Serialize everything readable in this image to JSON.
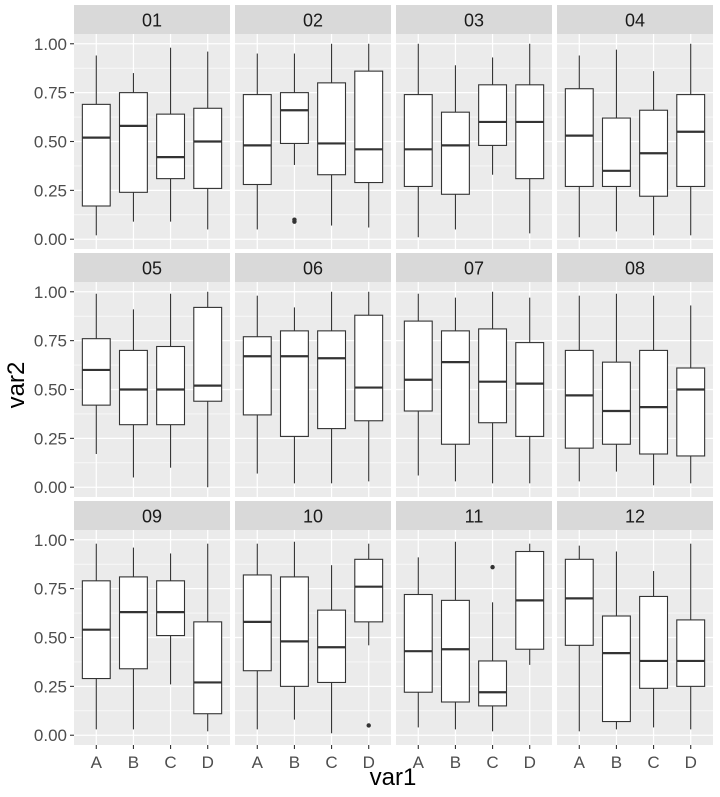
{
  "chart_data": {
    "type": "boxplot",
    "facet_layout": {
      "rows": 3,
      "cols": 4
    },
    "xlabel": "var1",
    "ylabel": "var2",
    "ylim": [
      0,
      1
    ],
    "y_ticks": [
      0,
      0.25,
      0.5,
      0.75,
      1
    ],
    "y_tick_labels": [
      "0.00",
      "0.25",
      "0.50",
      "0.75",
      "1.00"
    ],
    "categories": [
      "A",
      "B",
      "C",
      "D"
    ],
    "colors": {
      "panel_bg": "#ebebeb",
      "strip_bg": "#d9d9d9",
      "grid": "#ffffff",
      "box_fill": "#ffffff",
      "line": "#333333",
      "tick_text": "#4d4d4d",
      "strip_text": "#1a1a1a"
    },
    "panels": [
      {
        "label": "01",
        "boxes": [
          {
            "cat": "A",
            "min": 0.02,
            "q1": 0.17,
            "median": 0.52,
            "q3": 0.69,
            "max": 0.94,
            "outliers": []
          },
          {
            "cat": "B",
            "min": 0.09,
            "q1": 0.24,
            "median": 0.58,
            "q3": 0.75,
            "max": 0.85,
            "outliers": []
          },
          {
            "cat": "C",
            "min": 0.09,
            "q1": 0.31,
            "median": 0.42,
            "q3": 0.64,
            "max": 0.98,
            "outliers": []
          },
          {
            "cat": "D",
            "min": 0.05,
            "q1": 0.26,
            "median": 0.5,
            "q3": 0.67,
            "max": 0.96,
            "outliers": []
          }
        ]
      },
      {
        "label": "02",
        "boxes": [
          {
            "cat": "A",
            "min": 0.05,
            "q1": 0.28,
            "median": 0.48,
            "q3": 0.74,
            "max": 0.95,
            "outliers": []
          },
          {
            "cat": "B",
            "min": 0.38,
            "q1": 0.49,
            "median": 0.66,
            "q3": 0.75,
            "max": 0.95,
            "outliers": [
              0.1,
              0.09
            ]
          },
          {
            "cat": "C",
            "min": 0.07,
            "q1": 0.33,
            "median": 0.49,
            "q3": 0.8,
            "max": 1.0,
            "outliers": []
          },
          {
            "cat": "D",
            "min": 0.06,
            "q1": 0.29,
            "median": 0.46,
            "q3": 0.86,
            "max": 1.0,
            "outliers": []
          }
        ]
      },
      {
        "label": "03",
        "boxes": [
          {
            "cat": "A",
            "min": 0.01,
            "q1": 0.27,
            "median": 0.46,
            "q3": 0.74,
            "max": 1.0,
            "outliers": []
          },
          {
            "cat": "B",
            "min": 0.05,
            "q1": 0.23,
            "median": 0.48,
            "q3": 0.65,
            "max": 0.89,
            "outliers": []
          },
          {
            "cat": "C",
            "min": 0.33,
            "q1": 0.48,
            "median": 0.6,
            "q3": 0.79,
            "max": 0.93,
            "outliers": []
          },
          {
            "cat": "D",
            "min": 0.03,
            "q1": 0.31,
            "median": 0.6,
            "q3": 0.79,
            "max": 1.0,
            "outliers": []
          }
        ]
      },
      {
        "label": "04",
        "boxes": [
          {
            "cat": "A",
            "min": 0.01,
            "q1": 0.27,
            "median": 0.53,
            "q3": 0.77,
            "max": 0.94,
            "outliers": []
          },
          {
            "cat": "B",
            "min": 0.04,
            "q1": 0.27,
            "median": 0.35,
            "q3": 0.62,
            "max": 0.97,
            "outliers": []
          },
          {
            "cat": "C",
            "min": 0.02,
            "q1": 0.22,
            "median": 0.44,
            "q3": 0.66,
            "max": 0.86,
            "outliers": []
          },
          {
            "cat": "D",
            "min": 0.02,
            "q1": 0.27,
            "median": 0.55,
            "q3": 0.74,
            "max": 1.0,
            "outliers": []
          }
        ]
      },
      {
        "label": "05",
        "boxes": [
          {
            "cat": "A",
            "min": 0.17,
            "q1": 0.42,
            "median": 0.6,
            "q3": 0.76,
            "max": 0.99,
            "outliers": []
          },
          {
            "cat": "B",
            "min": 0.05,
            "q1": 0.32,
            "median": 0.5,
            "q3": 0.7,
            "max": 0.91,
            "outliers": []
          },
          {
            "cat": "C",
            "min": 0.1,
            "q1": 0.32,
            "median": 0.5,
            "q3": 0.72,
            "max": 0.99,
            "outliers": []
          },
          {
            "cat": "D",
            "min": 0.0,
            "q1": 0.44,
            "median": 0.52,
            "q3": 0.92,
            "max": 1.0,
            "outliers": []
          }
        ]
      },
      {
        "label": "06",
        "boxes": [
          {
            "cat": "A",
            "min": 0.07,
            "q1": 0.37,
            "median": 0.67,
            "q3": 0.77,
            "max": 0.98,
            "outliers": []
          },
          {
            "cat": "B",
            "min": 0.02,
            "q1": 0.26,
            "median": 0.67,
            "q3": 0.8,
            "max": 0.92,
            "outliers": []
          },
          {
            "cat": "C",
            "min": 0.02,
            "q1": 0.3,
            "median": 0.66,
            "q3": 0.8,
            "max": 1.0,
            "outliers": []
          },
          {
            "cat": "D",
            "min": 0.03,
            "q1": 0.34,
            "median": 0.51,
            "q3": 0.88,
            "max": 1.0,
            "outliers": []
          }
        ]
      },
      {
        "label": "07",
        "boxes": [
          {
            "cat": "A",
            "min": 0.06,
            "q1": 0.39,
            "median": 0.55,
            "q3": 0.85,
            "max": 0.99,
            "outliers": []
          },
          {
            "cat": "B",
            "min": 0.03,
            "q1": 0.22,
            "median": 0.64,
            "q3": 0.8,
            "max": 0.97,
            "outliers": []
          },
          {
            "cat": "C",
            "min": 0.02,
            "q1": 0.33,
            "median": 0.54,
            "q3": 0.81,
            "max": 1.0,
            "outliers": []
          },
          {
            "cat": "D",
            "min": 0.02,
            "q1": 0.26,
            "median": 0.53,
            "q3": 0.74,
            "max": 0.97,
            "outliers": []
          }
        ]
      },
      {
        "label": "08",
        "boxes": [
          {
            "cat": "A",
            "min": 0.03,
            "q1": 0.2,
            "median": 0.47,
            "q3": 0.7,
            "max": 0.98,
            "outliers": []
          },
          {
            "cat": "B",
            "min": 0.08,
            "q1": 0.22,
            "median": 0.39,
            "q3": 0.64,
            "max": 0.99,
            "outliers": []
          },
          {
            "cat": "C",
            "min": 0.01,
            "q1": 0.17,
            "median": 0.41,
            "q3": 0.7,
            "max": 0.98,
            "outliers": []
          },
          {
            "cat": "D",
            "min": 0.02,
            "q1": 0.16,
            "median": 0.5,
            "q3": 0.61,
            "max": 0.93,
            "outliers": []
          }
        ]
      },
      {
        "label": "09",
        "boxes": [
          {
            "cat": "A",
            "min": 0.03,
            "q1": 0.29,
            "median": 0.54,
            "q3": 0.79,
            "max": 0.98,
            "outliers": []
          },
          {
            "cat": "B",
            "min": 0.03,
            "q1": 0.34,
            "median": 0.63,
            "q3": 0.81,
            "max": 0.96,
            "outliers": []
          },
          {
            "cat": "C",
            "min": 0.26,
            "q1": 0.51,
            "median": 0.63,
            "q3": 0.79,
            "max": 0.93,
            "outliers": []
          },
          {
            "cat": "D",
            "min": 0.02,
            "q1": 0.11,
            "median": 0.27,
            "q3": 0.58,
            "max": 0.98,
            "outliers": []
          }
        ]
      },
      {
        "label": "10",
        "boxes": [
          {
            "cat": "A",
            "min": 0.03,
            "q1": 0.33,
            "median": 0.58,
            "q3": 0.82,
            "max": 0.98,
            "outliers": []
          },
          {
            "cat": "B",
            "min": 0.08,
            "q1": 0.25,
            "median": 0.48,
            "q3": 0.81,
            "max": 0.99,
            "outliers": []
          },
          {
            "cat": "C",
            "min": 0.01,
            "q1": 0.27,
            "median": 0.45,
            "q3": 0.64,
            "max": 0.87,
            "outliers": []
          },
          {
            "cat": "D",
            "min": 0.46,
            "q1": 0.58,
            "median": 0.76,
            "q3": 0.9,
            "max": 0.98,
            "outliers": [
              0.05
            ]
          }
        ]
      },
      {
        "label": "11",
        "boxes": [
          {
            "cat": "A",
            "min": 0.04,
            "q1": 0.22,
            "median": 0.43,
            "q3": 0.72,
            "max": 0.91,
            "outliers": []
          },
          {
            "cat": "B",
            "min": 0.03,
            "q1": 0.17,
            "median": 0.44,
            "q3": 0.69,
            "max": 0.99,
            "outliers": []
          },
          {
            "cat": "C",
            "min": 0.02,
            "q1": 0.15,
            "median": 0.22,
            "q3": 0.38,
            "max": 0.68,
            "outliers": [
              0.86
            ]
          },
          {
            "cat": "D",
            "min": 0.36,
            "q1": 0.44,
            "median": 0.69,
            "q3": 0.94,
            "max": 0.98,
            "outliers": []
          }
        ]
      },
      {
        "label": "12",
        "boxes": [
          {
            "cat": "A",
            "min": 0.02,
            "q1": 0.46,
            "median": 0.7,
            "q3": 0.9,
            "max": 0.97,
            "outliers": []
          },
          {
            "cat": "B",
            "min": 0.03,
            "q1": 0.07,
            "median": 0.42,
            "q3": 0.61,
            "max": 0.94,
            "outliers": []
          },
          {
            "cat": "C",
            "min": 0.04,
            "q1": 0.24,
            "median": 0.38,
            "q3": 0.71,
            "max": 0.84,
            "outliers": []
          },
          {
            "cat": "D",
            "min": 0.03,
            "q1": 0.25,
            "median": 0.38,
            "q3": 0.59,
            "max": 0.98,
            "outliers": []
          }
        ]
      }
    ]
  }
}
